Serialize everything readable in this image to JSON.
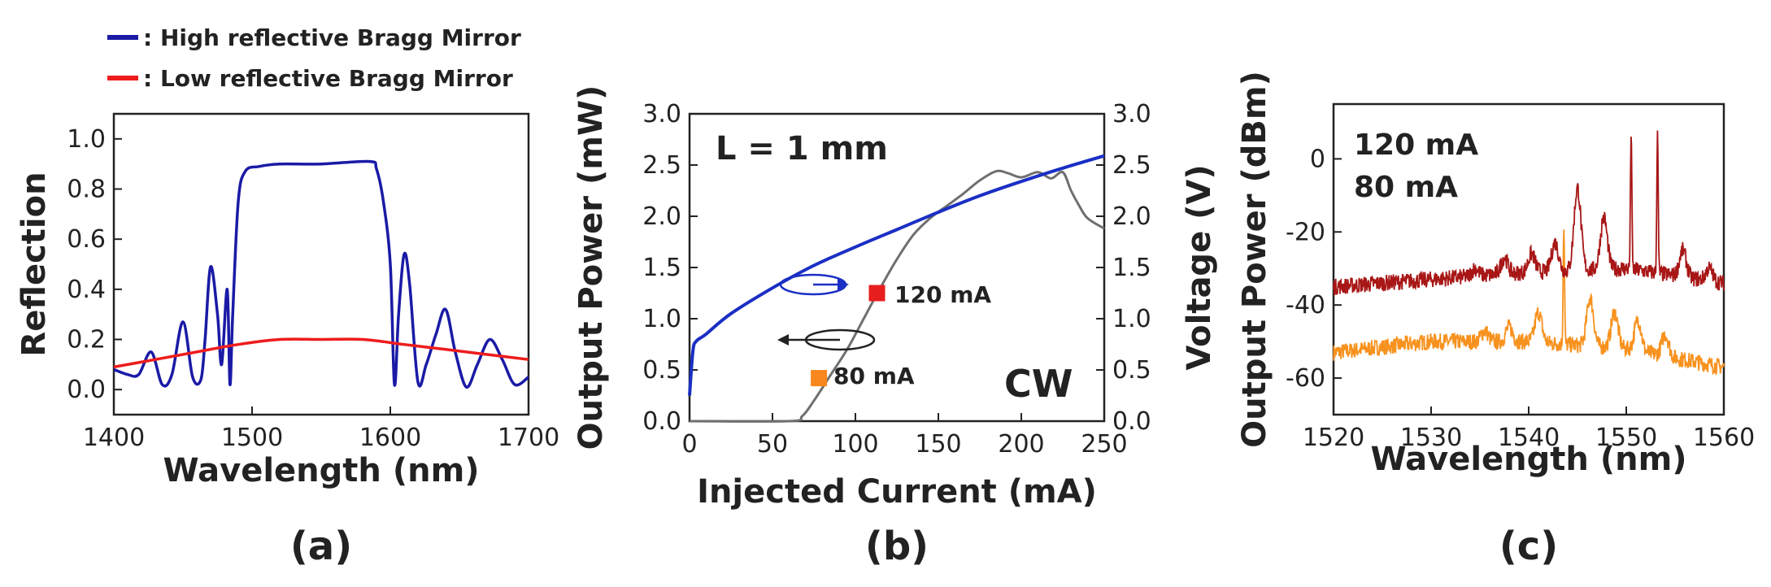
{
  "legend_items": [
    {
      "label": ": High reflective Bragg Mirror",
      "color": "#1a1aa6"
    },
    {
      "label": ": Low reflective Bragg Mirror",
      "color": "#ee1c1c"
    }
  ],
  "chart_data": [
    {
      "type": "line",
      "panel_label": "(a)",
      "xlabel": "Wavelength (nm)",
      "ylabel": "Reflection",
      "xlim": [
        1400,
        1700
      ],
      "ylim": [
        -0.1,
        1.1
      ],
      "xticks": [
        "1400",
        "1500",
        "1600",
        "1700"
      ],
      "yticks": [
        "0.0",
        "0.2",
        "0.4",
        "0.6",
        "0.8",
        "1.0"
      ],
      "series": [
        {
          "name": "High reflective Bragg Mirror",
          "color": "#1a1aa6",
          "x": [
            1400,
            1410,
            1418,
            1427,
            1435,
            1442,
            1450,
            1457,
            1463,
            1466,
            1470,
            1475,
            1478,
            1482,
            1484,
            1486,
            1490,
            1495,
            1505,
            1520,
            1550,
            1585,
            1590,
            1595,
            1600,
            1603,
            1606,
            1610,
            1614,
            1620,
            1626,
            1633,
            1640,
            1647,
            1655,
            1663,
            1672,
            1681,
            1690,
            1700
          ],
          "y": [
            0.08,
            0.06,
            0.06,
            0.15,
            0.02,
            0.06,
            0.27,
            0.05,
            0.04,
            0.2,
            0.49,
            0.3,
            0.1,
            0.4,
            0.02,
            0.3,
            0.75,
            0.87,
            0.89,
            0.9,
            0.9,
            0.91,
            0.88,
            0.75,
            0.5,
            0.02,
            0.3,
            0.54,
            0.42,
            0.03,
            0.1,
            0.22,
            0.32,
            0.15,
            0.01,
            0.1,
            0.2,
            0.12,
            0.02,
            0.05
          ]
        },
        {
          "name": "Low reflective Bragg Mirror",
          "color": "#ee1c1c",
          "x": [
            1400,
            1430,
            1460,
            1490,
            1520,
            1550,
            1580,
            1610,
            1640,
            1670,
            1700
          ],
          "y": [
            0.09,
            0.12,
            0.15,
            0.18,
            0.2,
            0.2,
            0.2,
            0.18,
            0.16,
            0.14,
            0.12
          ]
        }
      ]
    },
    {
      "type": "line",
      "panel_label": "(b)",
      "xlabel": "Injected Current (mA)",
      "ylabel": "Output Power (mW)",
      "ylabel_right": "Voltage (V)",
      "xlim": [
        0,
        250
      ],
      "ylim": [
        0,
        3.0
      ],
      "ylim_right": [
        0,
        3.0
      ],
      "xticks": [
        "0",
        "50",
        "100",
        "150",
        "200",
        "250"
      ],
      "yticks": [
        "0.0",
        "0.5",
        "1.0",
        "1.5",
        "2.0",
        "2.5",
        "3.0"
      ],
      "yticks_right": [
        "0.0",
        "0.5",
        "1.0",
        "1.5",
        "2.0",
        "2.5",
        "3.0"
      ],
      "annotations": [
        "L = 1 mm",
        "CW"
      ],
      "markers": [
        {
          "label": "120 mA",
          "x": 113,
          "y": 1.25,
          "color": "#e81e1e"
        },
        {
          "label": "80 mA",
          "x": 78,
          "y": 0.42,
          "color": "#f7871e"
        }
      ],
      "series": [
        {
          "name": "Voltage",
          "axis": "right",
          "color": "#1a2fc4",
          "x": [
            0,
            2,
            4,
            10,
            25,
            50,
            75,
            100,
            125,
            150,
            175,
            200,
            225,
            250
          ],
          "y": [
            0.25,
            0.68,
            0.78,
            0.85,
            1.05,
            1.3,
            1.52,
            1.7,
            1.87,
            2.04,
            2.2,
            2.34,
            2.47,
            2.59
          ]
        },
        {
          "name": "Output Power",
          "axis": "left",
          "color": "#6f6f6f",
          "x": [
            0,
            60,
            68,
            75,
            85,
            95,
            105,
            115,
            125,
            135,
            145,
            155,
            165,
            175,
            185,
            192,
            200,
            210,
            218,
            225,
            230,
            235,
            240,
            250
          ],
          "y": [
            0.0,
            0.0,
            0.05,
            0.2,
            0.45,
            0.7,
            1.0,
            1.3,
            1.58,
            1.82,
            1.98,
            2.1,
            2.22,
            2.35,
            2.44,
            2.42,
            2.38,
            2.43,
            2.37,
            2.43,
            2.25,
            2.1,
            1.98,
            1.88
          ]
        }
      ]
    },
    {
      "type": "line",
      "panel_label": "(c)",
      "xlabel": "Wavelength (nm)",
      "ylabel": "Output Power (dBm)",
      "xlim": [
        1520,
        1560
      ],
      "ylim": [
        -70,
        15
      ],
      "xticks": [
        "1520",
        "1530",
        "1540",
        "1550",
        "1560"
      ],
      "yticks": [
        "-60",
        "-40",
        "-20",
        "0"
      ],
      "series": [
        {
          "name": "120 mA",
          "color": "#a81616",
          "baseline_x": [
            1520,
            1530,
            1540,
            1550,
            1560
          ],
          "baseline_y": [
            -35,
            -33,
            -31,
            -30,
            -34
          ]
        },
        {
          "name": "80 mA",
          "color": "#f7921e",
          "baseline_x": [
            1520,
            1530,
            1540,
            1550,
            1560
          ],
          "baseline_y": [
            -53,
            -50,
            -50,
            -52,
            -57
          ]
        }
      ],
      "peaks": [
        {
          "series": "120 mA",
          "x": [
            1534.5,
            1537.5,
            1540.3,
            1542.7,
            1545.0,
            1547.7,
            1550.5,
            1553.2,
            1555.8,
            1558.5
          ],
          "y": [
            -30,
            -27,
            -26,
            -23,
            -8,
            -16,
            8,
            8,
            -25,
            -30
          ]
        },
        {
          "series": "80 mA",
          "x": [
            1535.5,
            1538.0,
            1541.0,
            1543.6,
            1546.3,
            1548.8,
            1551.2,
            1554.0
          ],
          "y": [
            -47,
            -46,
            -42,
            -18,
            -38,
            -42,
            -44,
            -48
          ]
        }
      ]
    }
  ]
}
